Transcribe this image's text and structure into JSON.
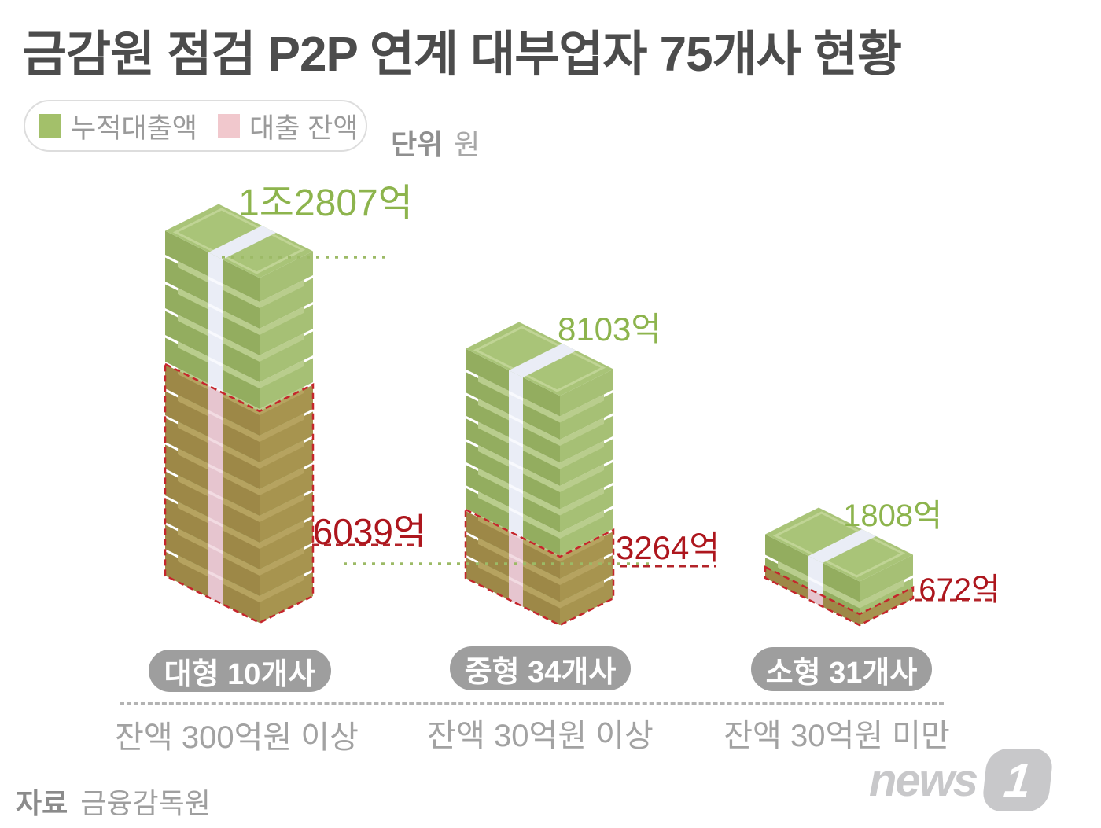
{
  "header": {
    "title": "금감원 점검 P2P 연계 대부업자 75개사 현황",
    "unit_label": "단위",
    "unit_value": "원"
  },
  "legend": {
    "items": [
      {
        "label": "누적대출액",
        "color": "#a3c06a"
      },
      {
        "label": "대출 잔액",
        "color": "#f1c8cd"
      }
    ]
  },
  "chart_data": {
    "type": "pictograph-stacked-bar",
    "title": "금감원 점검 P2P 연계 대부업자 75개사 현황",
    "unit": "원",
    "legend": [
      "누적대출액",
      "대출 잔액"
    ],
    "series_colors": {
      "cumulative": "#a3c06a",
      "balance": "#f1c8cd"
    },
    "groups": [
      {
        "pill": "대형 10개사",
        "caption": "잔액 300억원 이상",
        "total_label": "1조2807억",
        "balance_label": "6039억",
        "total_eok": 12807,
        "balance_eok": 6039
      },
      {
        "pill": "중형 34개사",
        "caption": "잔액 30억원 이상",
        "total_label": "8103억",
        "balance_label": "3264억",
        "total_eok": 8103,
        "balance_eok": 3264
      },
      {
        "pill": "소형 31개사",
        "caption": "잔액 30억원 미만",
        "total_label": "1808억",
        "balance_label": "672억",
        "total_eok": 1808,
        "balance_eok": 672
      }
    ]
  },
  "source": {
    "prefix": "자료",
    "name": "금융감독원"
  },
  "logo": {
    "text": "news",
    "badge": "1"
  }
}
